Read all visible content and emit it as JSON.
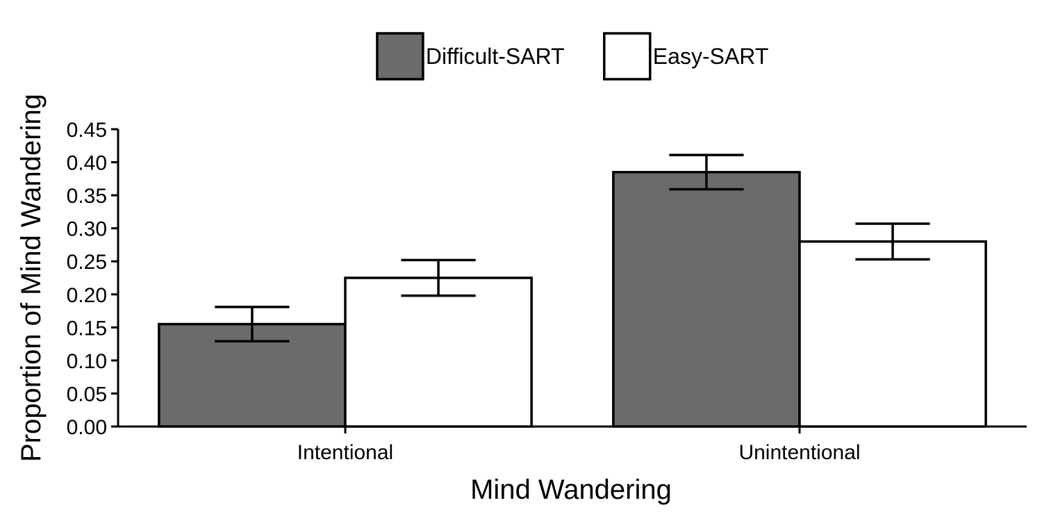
{
  "chart_data": {
    "type": "bar",
    "xlabel": "Mind Wandering",
    "ylabel": "Proportion of Mind Wandering",
    "categories": [
      "Intentional",
      "Unintentional"
    ],
    "series": [
      {
        "name": "Difficult-SART",
        "color": "#6b6b6b",
        "values": [
          0.155,
          0.385
        ],
        "error": [
          0.026,
          0.026
        ]
      },
      {
        "name": "Easy-SART",
        "color": "#ffffff",
        "values": [
          0.225,
          0.28
        ],
        "error": [
          0.027,
          0.027
        ]
      }
    ],
    "ylim": [
      0,
      0.45
    ],
    "yticks": [
      "0.00",
      "0.05",
      "0.10",
      "0.15",
      "0.20",
      "0.25",
      "0.30",
      "0.35",
      "0.40",
      "0.45"
    ],
    "grid": false,
    "legend_position": "top"
  }
}
